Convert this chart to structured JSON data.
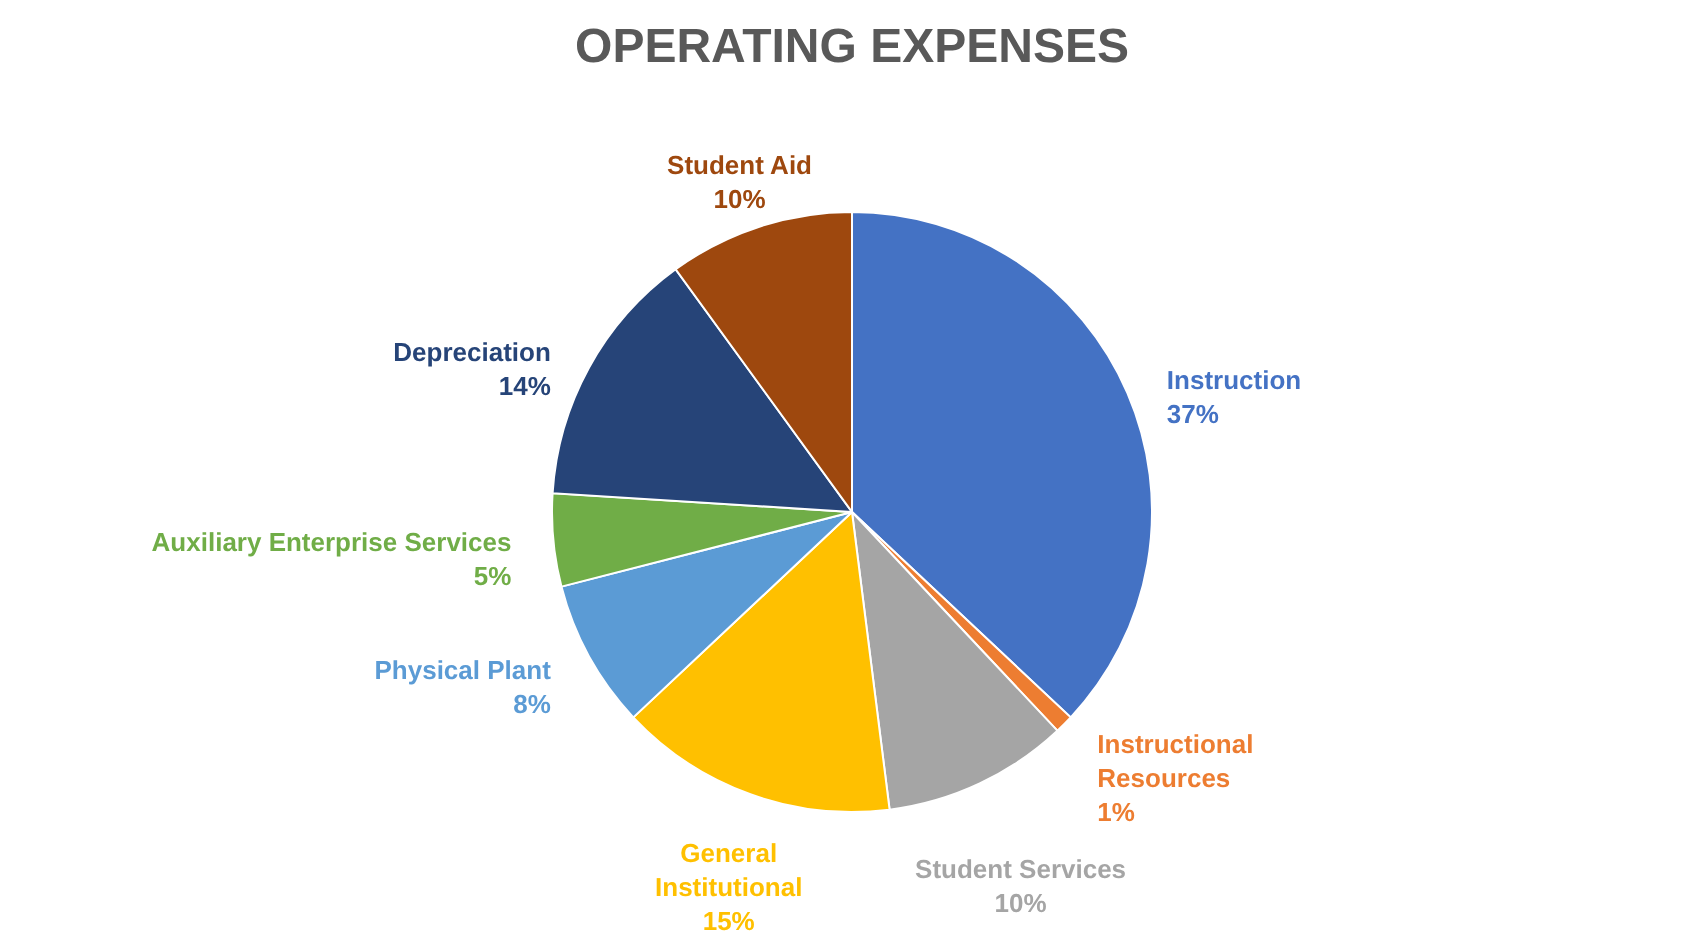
{
  "chart_data": {
    "type": "pie",
    "title": "OPERATING EXPENSES",
    "categories": [
      "Instruction",
      "Instructional Resources",
      "Student Services",
      "General Institutional",
      "Physical Plant",
      "Auxiliary Enterprise Services",
      "Depreciation",
      "Student Aid"
    ],
    "values": [
      37,
      1,
      10,
      15,
      8,
      5,
      14,
      10
    ],
    "value_labels": [
      "37%",
      "1%",
      "10%",
      "15%",
      "8%",
      "5%",
      "14%",
      "10%"
    ],
    "colors": [
      "#4472c4",
      "#ed7d31",
      "#a5a5a5",
      "#ffc000",
      "#5b9bd5",
      "#70ad47",
      "#264478",
      "#9e480e"
    ]
  }
}
